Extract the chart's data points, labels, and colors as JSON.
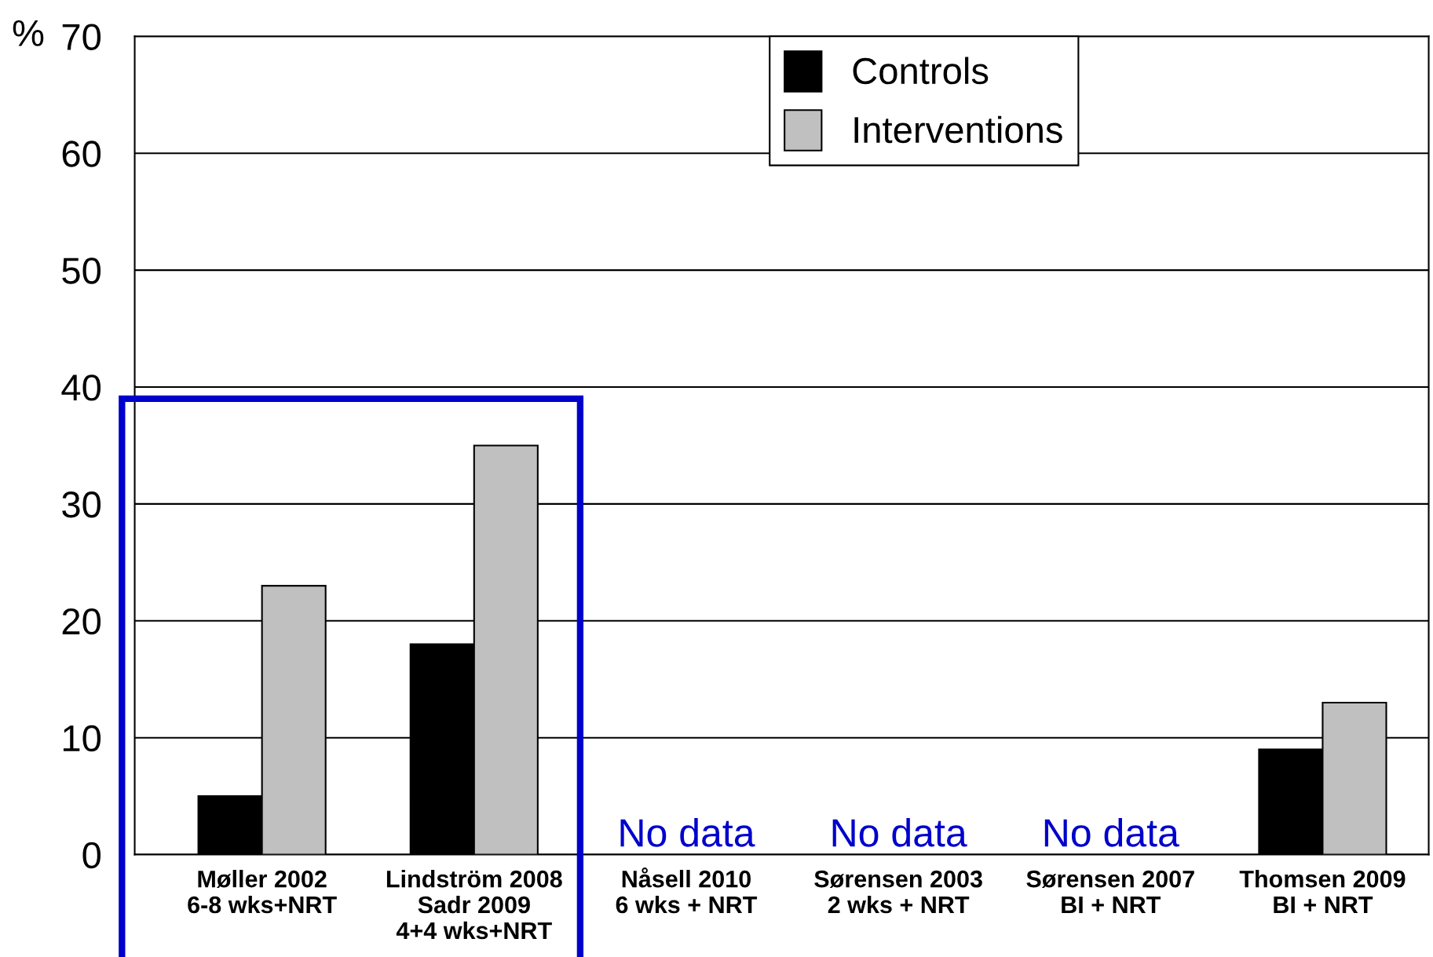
{
  "chart_data": {
    "type": "bar",
    "ylabel": "%",
    "categories": [
      "Møller 2002\n6-8 wks+NRT",
      "Lindström 2008\nSadr 2009\n4+4 wks+NRT",
      "Nåsell 2010\n6 wks + NRT",
      "Sørensen 2003\n2 wks + NRT",
      "Sørensen 2007\nBI + NRT",
      "Thomsen 2009\nBI + NRT"
    ],
    "series": [
      {
        "name": "Controls",
        "color": "#000000",
        "values": [
          5,
          18,
          null,
          null,
          null,
          9
        ]
      },
      {
        "name": "Interventions",
        "color": "#c0c0c0",
        "values": [
          23,
          35,
          null,
          null,
          null,
          13
        ]
      }
    ],
    "ylim": [
      0,
      70
    ],
    "yticks": [
      0,
      10,
      20,
      30,
      40,
      50,
      60,
      70
    ],
    "grid": "y",
    "legend": "top",
    "annotations": [
      "No data",
      "No data",
      "No data"
    ]
  }
}
